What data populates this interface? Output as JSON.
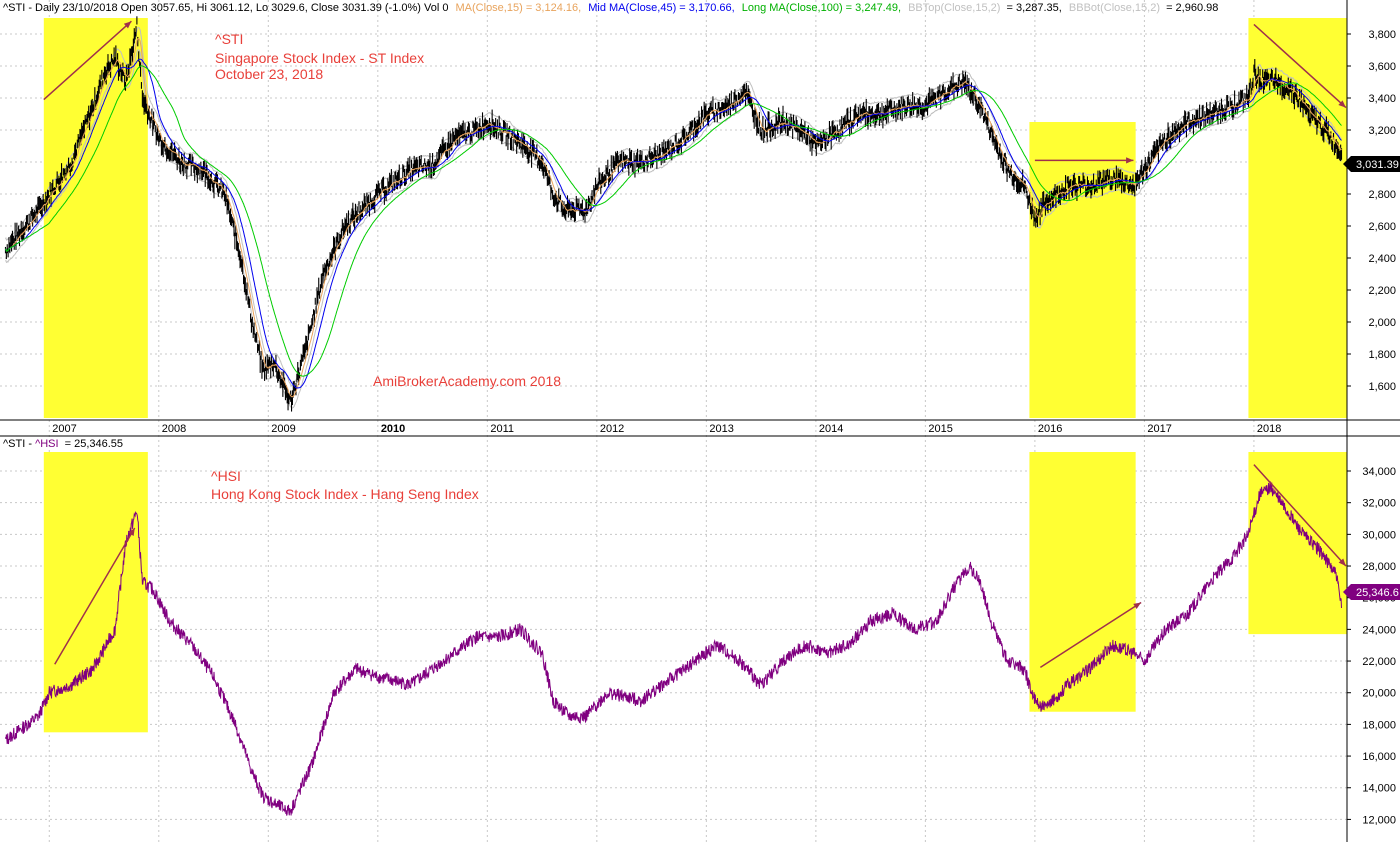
{
  "header": {
    "sti_prefix": "^STI - Daily 23/10/2018 Open 3057.65, Hi 3061.12, Lo 3029.6, Close 3031.39 (-1.0%) Vol 0",
    "ma_short": "MA(Close,15) = 3,124.16,",
    "ma_mid": "Mid MA(Close,45) = 3,170.66,",
    "ma_long": "Long MA(Close,100) = 3,247.49,",
    "bb_top": "BBTop(Close,15,2)",
    "bb_top_value": "= 3,287.35,",
    "bb_bot": "BBBot(Close,15,2)",
    "bb_bot_value": "= 2,960.98",
    "hsi_prefix": "^STI - ",
    "hsi_name": "^HSI",
    "hsi_value": "= 25,346.55"
  },
  "colors": {
    "price": "#000000",
    "ma_short": "#e8a35c",
    "ma_mid": "#0000ee",
    "ma_long": "#00cc00",
    "bb": "#c0c0c0",
    "hsi": "#800080",
    "highlight": "#ffff33",
    "arrow": "#a0304a",
    "annotation": "#e8403a",
    "grid": "#c8c8c8"
  },
  "annotations": {
    "sti_symbol": "^STI",
    "sti_name": "Singapore Stock Index - ST Index",
    "sti_date": "October 23, 2018",
    "watermark": "AmiBrokerAcademy.com  2018",
    "hsi_symbol": "^HSI",
    "hsi_name": "Hong Kong Stock Index - Hang Seng Index"
  },
  "value_labels": {
    "sti_last": "3,031.39",
    "hsi_last": "25,346.6"
  },
  "chart_data": [
    {
      "type": "line",
      "title": "^STI",
      "x_labels": [
        "2007",
        "2008",
        "2009",
        "2010",
        "2011",
        "2012",
        "2013",
        "2014",
        "2015",
        "2016",
        "2017",
        "2018"
      ],
      "yticks": [
        "1,600",
        "1,800",
        "2,000",
        "2,200",
        "2,400",
        "2,600",
        "2,800",
        "3,000",
        "3,200",
        "3,400",
        "3,600",
        "3,800"
      ],
      "ylim": [
        1400,
        3900
      ],
      "x": [
        2006.6,
        2006.9,
        2007.2,
        2007.4,
        2007.5,
        2007.6,
        2007.7,
        2007.8,
        2007.85,
        2008.0,
        2008.2,
        2008.4,
        2008.6,
        2008.75,
        2008.85,
        2008.95,
        2009.05,
        2009.2,
        2009.35,
        2009.5,
        2009.7,
        2010.0,
        2010.3,
        2010.5,
        2010.7,
        2010.9,
        2011.0,
        2011.3,
        2011.5,
        2011.6,
        2011.7,
        2011.9,
        2012.0,
        2012.2,
        2012.4,
        2012.6,
        2012.8,
        2013.0,
        2013.2,
        2013.35,
        2013.5,
        2013.7,
        2013.9,
        2014.0,
        2014.2,
        2014.4,
        2014.6,
        2014.8,
        2015.0,
        2015.2,
        2015.35,
        2015.5,
        2015.65,
        2015.75,
        2015.9,
        2016.0,
        2016.1,
        2016.3,
        2016.5,
        2016.7,
        2016.9,
        2017.0,
        2017.2,
        2017.4,
        2017.6,
        2017.8,
        2017.95,
        2018.0,
        2018.1,
        2018.2,
        2018.35,
        2018.5,
        2018.65,
        2018.8
      ],
      "y": [
        2450,
        2700,
        3000,
        3350,
        3550,
        3650,
        3500,
        3850,
        3400,
        3150,
        3000,
        2950,
        2800,
        2400,
        2000,
        1700,
        1750,
        1500,
        1850,
        2300,
        2600,
        2800,
        2950,
        2980,
        3150,
        3200,
        3250,
        3120,
        3000,
        2800,
        2700,
        2700,
        2850,
        3000,
        3000,
        3050,
        3150,
        3300,
        3350,
        3450,
        3200,
        3250,
        3180,
        3100,
        3200,
        3300,
        3300,
        3350,
        3350,
        3450,
        3500,
        3350,
        3100,
        2950,
        2850,
        2650,
        2750,
        2850,
        2850,
        2900,
        2850,
        2950,
        3150,
        3250,
        3300,
        3350,
        3400,
        3550,
        3500,
        3500,
        3450,
        3300,
        3200,
        3050
      ],
      "series": [
        {
          "name": "MA(Close,15)"
        },
        {
          "name": "Mid MA(Close,45)"
        },
        {
          "name": "Long MA(Close,100)"
        }
      ],
      "last_value": 3031.39
    },
    {
      "type": "line",
      "title": "^HSI",
      "yticks": [
        "12,000",
        "14,000",
        "16,000",
        "18,000",
        "20,000",
        "22,000",
        "24,000",
        "26,000",
        "28,000",
        "30,000",
        "32,000",
        "34,000"
      ],
      "ylim": [
        10700,
        35200
      ],
      "x": [
        2006.6,
        2006.9,
        2007.0,
        2007.2,
        2007.4,
        2007.6,
        2007.7,
        2007.8,
        2007.85,
        2007.95,
        2008.1,
        2008.3,
        2008.5,
        2008.7,
        2008.85,
        2008.95,
        2009.05,
        2009.2,
        2009.4,
        2009.6,
        2009.8,
        2010.0,
        2010.3,
        2010.5,
        2010.7,
        2010.9,
        2011.1,
        2011.3,
        2011.5,
        2011.6,
        2011.75,
        2011.9,
        2012.1,
        2012.4,
        2012.7,
        2012.9,
        2013.1,
        2013.3,
        2013.5,
        2013.7,
        2013.9,
        2014.1,
        2014.3,
        2014.5,
        2014.7,
        2014.9,
        2015.1,
        2015.25,
        2015.4,
        2015.5,
        2015.6,
        2015.75,
        2015.9,
        2016.0,
        2016.1,
        2016.3,
        2016.5,
        2016.7,
        2016.9,
        2017.0,
        2017.2,
        2017.4,
        2017.6,
        2017.8,
        2017.95,
        2018.05,
        2018.15,
        2018.3,
        2018.45,
        2018.6,
        2018.75,
        2018.8
      ],
      "y": [
        17000,
        18500,
        20000,
        20500,
        21500,
        24000,
        29500,
        31500,
        27000,
        26500,
        24500,
        23000,
        21000,
        18000,
        15000,
        13500,
        13000,
        12500,
        15500,
        20000,
        21500,
        21000,
        20500,
        21500,
        22500,
        23500,
        23500,
        24000,
        22500,
        19500,
        18500,
        18500,
        20000,
        19500,
        21000,
        22000,
        23000,
        22000,
        20500,
        22000,
        23000,
        22500,
        23000,
        24500,
        25000,
        24000,
        24500,
        26500,
        28000,
        27000,
        24500,
        22000,
        21500,
        19500,
        19000,
        20500,
        21500,
        23000,
        22500,
        22000,
        24000,
        25000,
        27000,
        28500,
        30000,
        32500,
        33000,
        31500,
        30000,
        29000,
        27500,
        25346.55
      ],
      "last_value": 25346.55
    }
  ]
}
